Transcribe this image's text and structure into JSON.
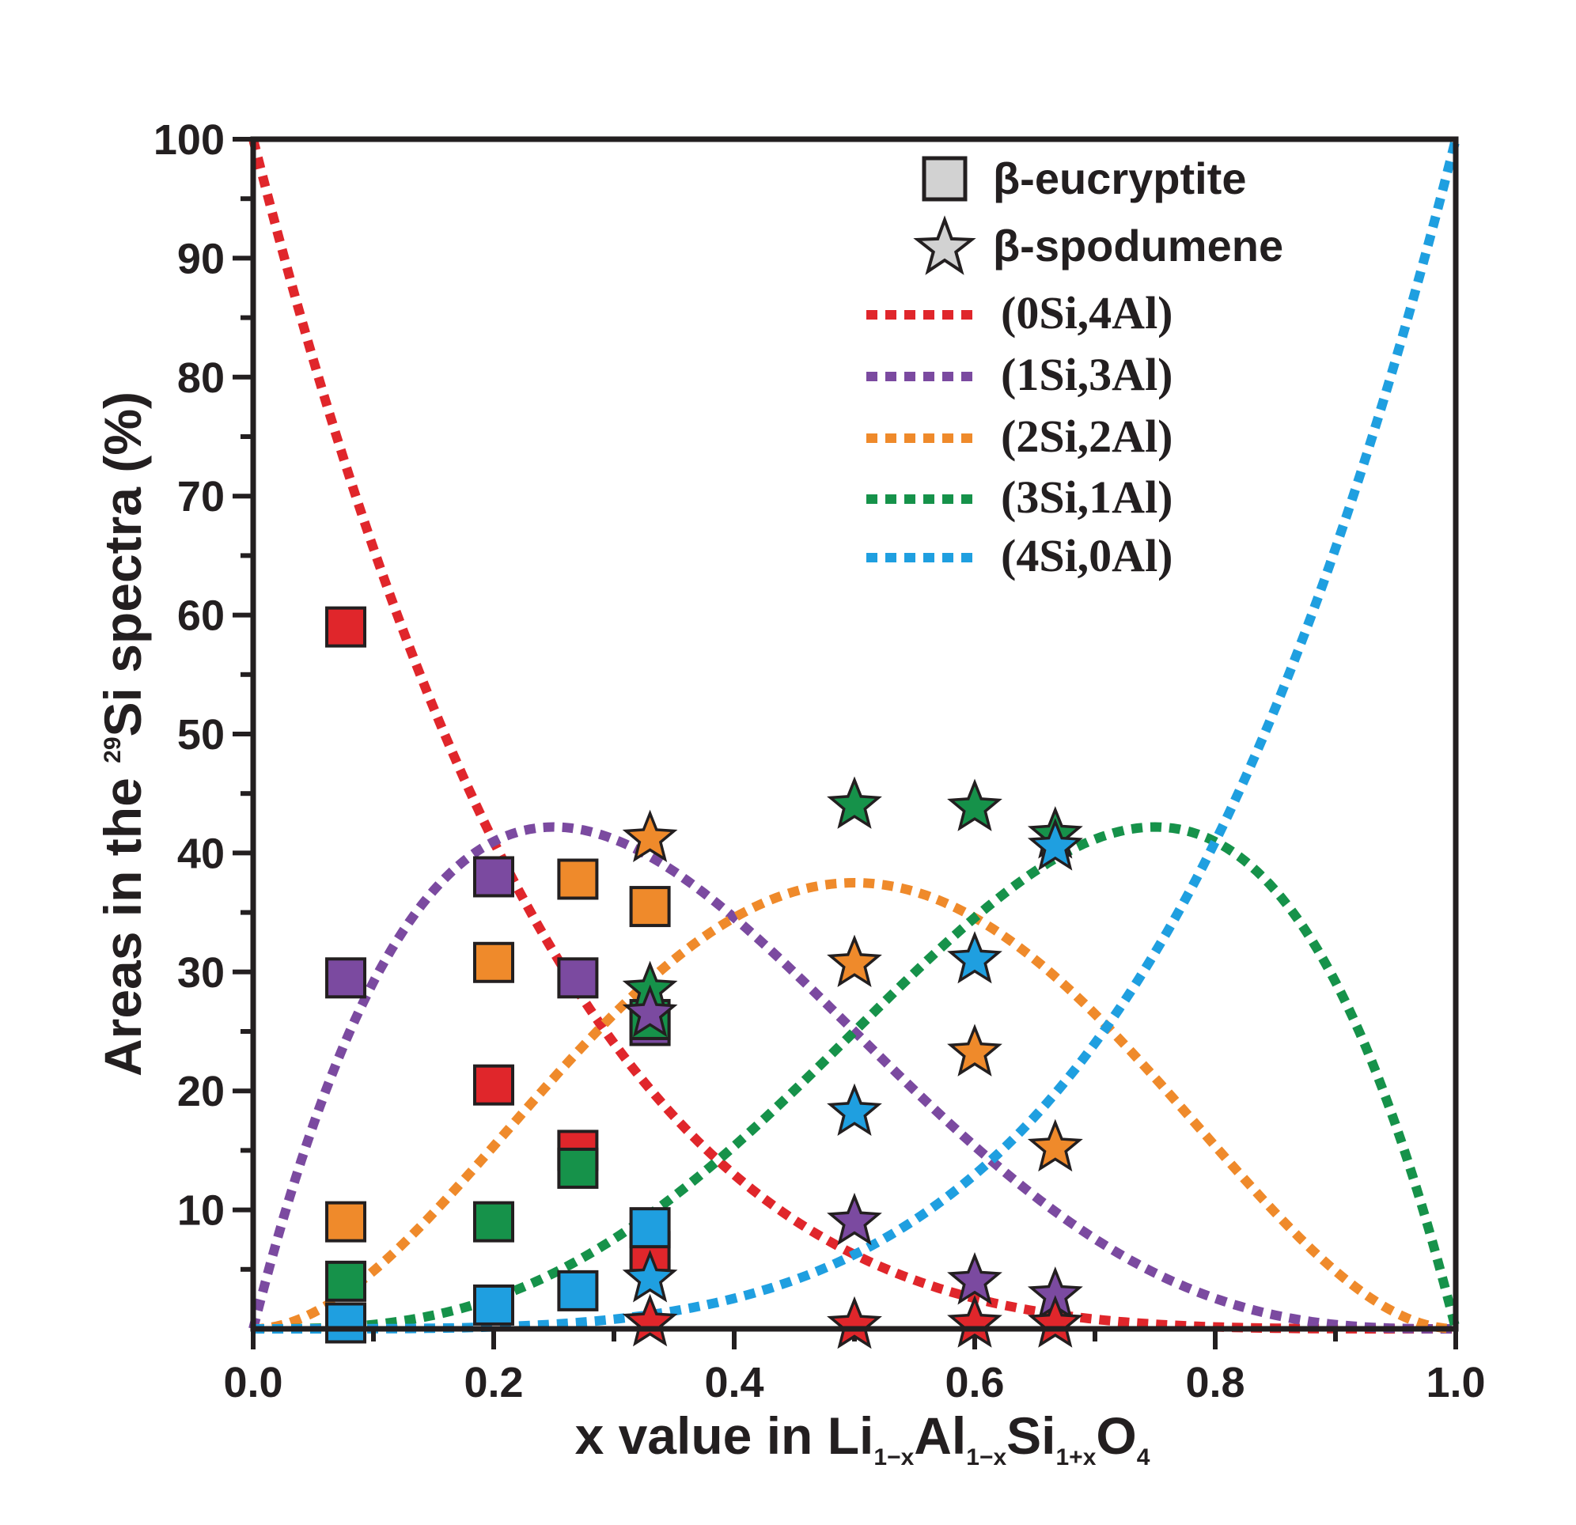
{
  "chart_data": {
    "type": "scatter",
    "xlabel": {
      "main": "x value in Li",
      "parts": [
        {
          "t": "Li",
          "sub": "1−x"
        },
        {
          "t": "Al",
          "sub": "1−x"
        },
        {
          "t": "Si",
          "sub": "1+x"
        },
        {
          "t": "O",
          "sub": "4"
        }
      ],
      "prefix": "x value in "
    },
    "ylabel": {
      "prefix": "Areas in the ",
      "sup": "29",
      "suffix": "Si spectra (%)"
    },
    "xlim": [
      0.0,
      1.0
    ],
    "ylim": [
      0,
      100
    ],
    "xticks": [
      "0.0",
      "0.2",
      "0.4",
      "0.6",
      "0.8",
      "1.0"
    ],
    "xtick_values": [
      0.0,
      0.2,
      0.4,
      0.6,
      0.8,
      1.0
    ],
    "yticks": [
      "10",
      "20",
      "30",
      "40",
      "50",
      "60",
      "70",
      "80",
      "90",
      "100"
    ],
    "ytick_values": [
      10,
      20,
      30,
      40,
      50,
      60,
      70,
      80,
      90,
      100
    ],
    "legend": {
      "position": "top-right",
      "markers": [
        {
          "shape": "square",
          "label": "β-eucryptite"
        },
        {
          "shape": "star",
          "label": "β-spodumene"
        }
      ],
      "lines": [
        {
          "label": "(0Si,4Al)",
          "color": "#e0262b"
        },
        {
          "label": "(1Si,3Al)",
          "color": "#7b4aa0"
        },
        {
          "label": "(2Si,2Al)",
          "color": "#ef8a2b"
        },
        {
          "label": "(3Si,1Al)",
          "color": "#16924a"
        },
        {
          "label": "(4Si,0Al)",
          "color": "#1f9fe0"
        }
      ]
    },
    "curves": [
      {
        "name": "(0Si,4Al)",
        "color": "#e0262b",
        "n": 0
      },
      {
        "name": "(1Si,3Al)",
        "color": "#7b4aa0",
        "n": 1
      },
      {
        "name": "(2Si,2Al)",
        "color": "#ef8a2b",
        "n": 2
      },
      {
        "name": "(3Si,1Al)",
        "color": "#16924a",
        "n": 3
      },
      {
        "name": "(4Si,0Al)",
        "color": "#1f9fe0",
        "n": 4
      }
    ],
    "eucryptite_points": [
      {
        "x": 0.077,
        "y": 59.0,
        "color": "#e0262b",
        "series": "(0Si,4Al)"
      },
      {
        "x": 0.077,
        "y": 29.5,
        "color": "#7b4aa0",
        "series": "(1Si,3Al)"
      },
      {
        "x": 0.077,
        "y": 9.0,
        "color": "#ef8a2b",
        "series": "(2Si,2Al)"
      },
      {
        "x": 0.077,
        "y": 4.0,
        "color": "#16924a",
        "series": "(3Si,1Al)"
      },
      {
        "x": 0.077,
        "y": 0.5,
        "color": "#1f9fe0",
        "series": "(4Si,0Al)"
      },
      {
        "x": 0.2,
        "y": 20.5,
        "color": "#e0262b",
        "series": "(0Si,4Al)"
      },
      {
        "x": 0.2,
        "y": 38.0,
        "color": "#7b4aa0",
        "series": "(1Si,3Al)"
      },
      {
        "x": 0.2,
        "y": 30.8,
        "color": "#ef8a2b",
        "series": "(2Si,2Al)"
      },
      {
        "x": 0.2,
        "y": 9.0,
        "color": "#16924a",
        "series": "(3Si,1Al)"
      },
      {
        "x": 0.2,
        "y": 2.0,
        "color": "#1f9fe0",
        "series": "(4Si,0Al)"
      },
      {
        "x": 0.27,
        "y": 15.0,
        "color": "#e0262b",
        "series": "(0Si,4Al)"
      },
      {
        "x": 0.27,
        "y": 29.5,
        "color": "#7b4aa0",
        "series": "(1Si,3Al)"
      },
      {
        "x": 0.27,
        "y": 37.8,
        "color": "#ef8a2b",
        "series": "(2Si,2Al)"
      },
      {
        "x": 0.27,
        "y": 13.5,
        "color": "#16924a",
        "series": "(3Si,1Al)"
      },
      {
        "x": 0.27,
        "y": 3.2,
        "color": "#1f9fe0",
        "series": "(4Si,0Al)"
      },
      {
        "x": 0.33,
        "y": 6.5,
        "color": "#e0262b",
        "series": "(0Si,4Al)"
      },
      {
        "x": 0.33,
        "y": 25.5,
        "color": "#7b4aa0",
        "series": "(1Si,3Al)"
      },
      {
        "x": 0.33,
        "y": 35.5,
        "color": "#ef8a2b",
        "series": "(2Si,2Al)"
      },
      {
        "x": 0.33,
        "y": 26.0,
        "color": "#16924a",
        "series": "(3Si,1Al)"
      },
      {
        "x": 0.33,
        "y": 8.5,
        "color": "#1f9fe0",
        "series": "(4Si,0Al)"
      }
    ],
    "spodumene_points": [
      {
        "x": 0.33,
        "y": 41.2,
        "color": "#ef8a2b",
        "series": "(2Si,2Al)"
      },
      {
        "x": 0.33,
        "y": 28.5,
        "color": "#16924a",
        "series": "(3Si,1Al)"
      },
      {
        "x": 0.33,
        "y": 26.5,
        "color": "#7b4aa0",
        "series": "(1Si,3Al)"
      },
      {
        "x": 0.33,
        "y": 4.2,
        "color": "#1f9fe0",
        "series": "(4Si,0Al)"
      },
      {
        "x": 0.33,
        "y": 0.5,
        "color": "#e0262b",
        "series": "(0Si,4Al)"
      },
      {
        "x": 0.5,
        "y": 44.0,
        "color": "#16924a",
        "series": "(3Si,1Al)"
      },
      {
        "x": 0.5,
        "y": 30.7,
        "color": "#ef8a2b",
        "series": "(2Si,2Al)"
      },
      {
        "x": 0.5,
        "y": 18.2,
        "color": "#1f9fe0",
        "series": "(4Si,0Al)"
      },
      {
        "x": 0.5,
        "y": 9.0,
        "color": "#7b4aa0",
        "series": "(1Si,3Al)"
      },
      {
        "x": 0.5,
        "y": 0.3,
        "color": "#e0262b",
        "series": "(0Si,4Al)"
      },
      {
        "x": 0.6,
        "y": 43.8,
        "color": "#16924a",
        "series": "(3Si,1Al)"
      },
      {
        "x": 0.6,
        "y": 31.0,
        "color": "#1f9fe0",
        "series": "(4Si,0Al)"
      },
      {
        "x": 0.6,
        "y": 23.2,
        "color": "#ef8a2b",
        "series": "(2Si,2Al)"
      },
      {
        "x": 0.6,
        "y": 4.0,
        "color": "#7b4aa0",
        "series": "(1Si,3Al)"
      },
      {
        "x": 0.6,
        "y": 0.4,
        "color": "#e0262b",
        "series": "(0Si,4Al)"
      },
      {
        "x": 0.667,
        "y": 41.5,
        "color": "#16924a",
        "series": "(3Si,1Al)"
      },
      {
        "x": 0.667,
        "y": 40.5,
        "color": "#1f9fe0",
        "series": "(4Si,0Al)"
      },
      {
        "x": 0.667,
        "y": 15.2,
        "color": "#ef8a2b",
        "series": "(2Si,2Al)"
      },
      {
        "x": 0.667,
        "y": 2.8,
        "color": "#7b4aa0",
        "series": "(1Si,3Al)"
      },
      {
        "x": 0.667,
        "y": 0.4,
        "color": "#e0262b",
        "series": "(0Si,4Al)"
      }
    ]
  }
}
